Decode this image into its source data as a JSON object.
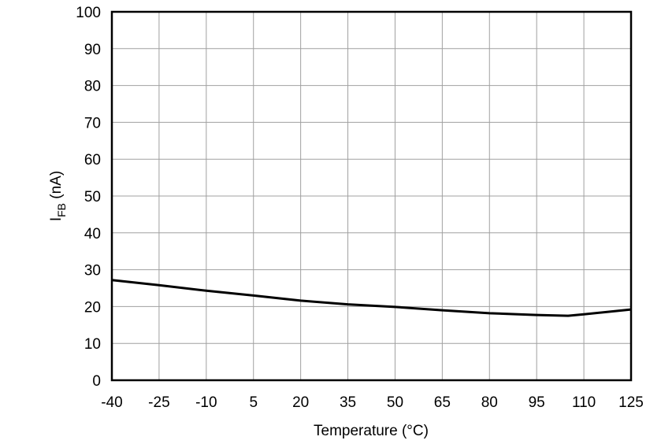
{
  "chart_data": {
    "type": "line",
    "title": "",
    "xlabel": "Temperature (°C)",
    "ylabel_main": "I",
    "ylabel_sub": "FB",
    "ylabel_unit": " (nA)",
    "xlim": [
      -40,
      125
    ],
    "ylim": [
      0,
      100
    ],
    "grid": true,
    "xticks": [
      -40,
      -25,
      -10,
      5,
      20,
      35,
      50,
      65,
      80,
      95,
      110,
      125
    ],
    "yticks": [
      0,
      10,
      20,
      30,
      40,
      50,
      60,
      70,
      80,
      90,
      100
    ],
    "series": [
      {
        "x": [
          -40,
          -25,
          -10,
          5,
          20,
          35,
          50,
          65,
          80,
          95,
          105,
          110,
          125
        ],
        "y": [
          27.2,
          25.8,
          24.3,
          23.0,
          21.6,
          20.6,
          19.9,
          19.0,
          18.2,
          17.7,
          17.5,
          17.9,
          19.2
        ],
        "color": "#000000"
      }
    ]
  }
}
